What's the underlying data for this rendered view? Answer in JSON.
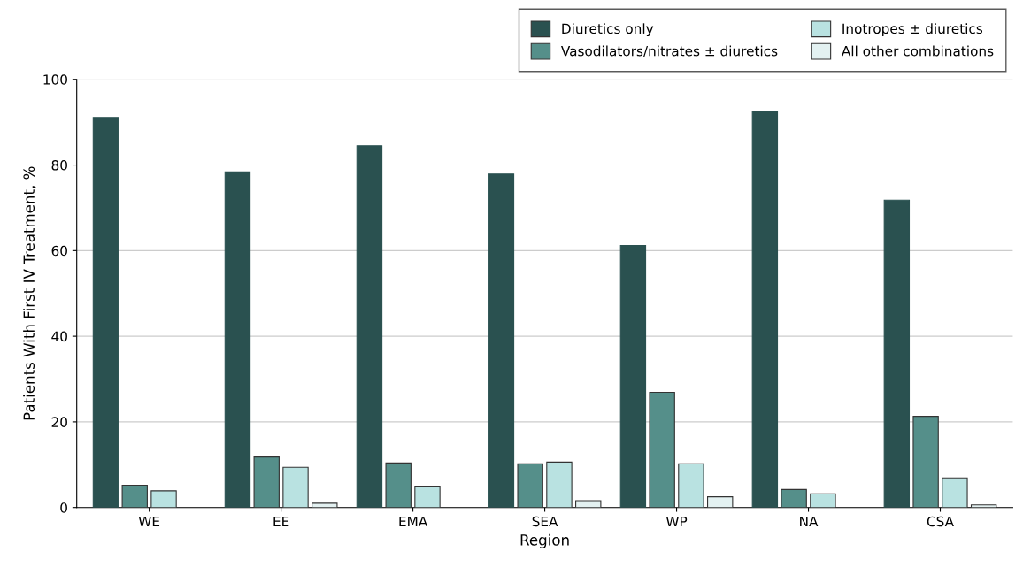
{
  "chart_data": {
    "type": "bar",
    "xlabel": "Region",
    "ylabel": "Patients With First IV Treatment, %",
    "categories": [
      "WE",
      "EE",
      "EMA",
      "SEA",
      "WP",
      "NA",
      "CSA"
    ],
    "series": [
      {
        "name": "Diuretics only",
        "color": "#2a5150",
        "values": [
          91.1,
          78.4,
          84.5,
          77.9,
          61.2,
          92.6,
          71.8
        ]
      },
      {
        "name": "Vasodilators/nitrates ± diuretics",
        "color": "#558f8a",
        "values": [
          5.2,
          11.8,
          10.4,
          10.2,
          26.9,
          4.2,
          21.3
        ]
      },
      {
        "name": "Inotropes ± diuretics",
        "color": "#b9e2e1",
        "values": [
          3.9,
          9.4,
          5.0,
          10.6,
          10.2,
          3.2,
          6.9
        ]
      },
      {
        "name": "All other combinations",
        "color": "#e3f1f1",
        "values": [
          null,
          1.0,
          null,
          1.6,
          2.5,
          null,
          0.6
        ]
      }
    ],
    "ylim": [
      0,
      100
    ],
    "yticks": [
      0,
      20,
      40,
      60,
      80,
      100
    ],
    "grid": "y",
    "legend": "top right"
  }
}
